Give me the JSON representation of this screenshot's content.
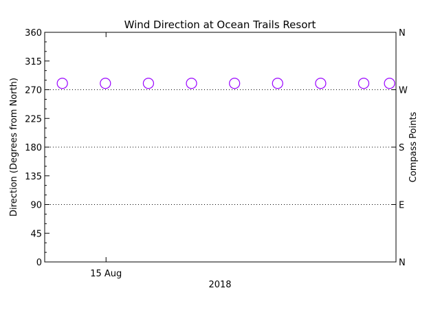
{
  "chart_data": {
    "type": "scatter",
    "title": "Wind Direction at Ocean Trails Resort",
    "ylabel": "Direction (Degrees from North)",
    "ylabel_right": "Compass Points",
    "xlabel": "2018",
    "x_tick_labels": [
      {
        "label": "15 Aug",
        "x": 1.345
      }
    ],
    "x": [
      0.33,
      1.33,
      2.33,
      3.33,
      4.33,
      5.33,
      6.33,
      7.33,
      7.93
    ],
    "y": [
      280,
      280,
      280,
      280,
      280,
      280,
      280,
      280,
      280
    ],
    "xlim": [
      -0.08,
      8.08
    ],
    "ylim": [
      0,
      360
    ],
    "yticks": [
      0,
      45,
      90,
      135,
      180,
      225,
      270,
      315,
      360
    ],
    "compass_ticks": [
      {
        "value": 0,
        "label": "N"
      },
      {
        "value": 90,
        "label": "E"
      },
      {
        "value": 180,
        "label": "S"
      },
      {
        "value": 270,
        "label": "W"
      },
      {
        "value": 360,
        "label": "N"
      }
    ],
    "dotted_reference_lines": [
      90,
      180,
      270
    ],
    "marker": "open-circle",
    "marker_color": "#9900ff",
    "grid": false
  }
}
